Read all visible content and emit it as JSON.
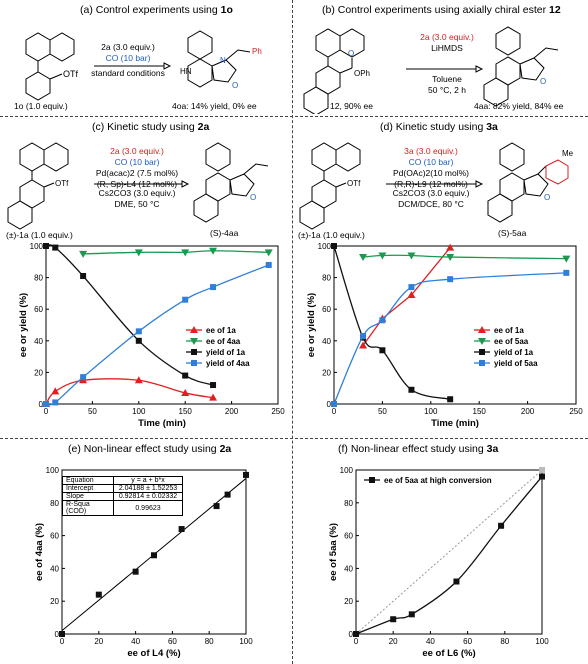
{
  "panel_a": {
    "title_prefix": "(a) Control experiments using ",
    "title_bold": "1o",
    "substituent": "OTf",
    "reagent": "2a (3.0  equiv.)",
    "co": "CO (10 bar)",
    "conditions": "standard conditions",
    "sm_label": "1o (1.0 equiv.)",
    "product_label": "4oa: 14% yield, 0% ee",
    "ring_labels": {
      "n": "N",
      "nh": "HN",
      "o": "O",
      "ph": "Ph"
    }
  },
  "panel_b": {
    "title_prefix": "(b) Control experiments using axially chiral ester ",
    "title_bold": "12",
    "ester": "OPh",
    "carbonyl": "O",
    "reagent": "2a (3.0  equiv.)",
    "base": "LiHMDS",
    "solvent": "Toluene",
    "temp": "50 °C, 2 h",
    "sm_label": "12, 90% ee",
    "product_label": "4aa: 82% yield, 84% ee"
  },
  "panel_c": {
    "title_prefix": "(c) Kinetic study using ",
    "title_bold": "2a",
    "reagent": "2a (3.0  equiv.)",
    "co": "CO (10 bar)",
    "catalyst": "Pd(acac)2 (7.5 mol%)",
    "ligand": "(R, Sp)-L4 (12 mol%)",
    "base": "Cs2CO3 (3.0 equiv.)",
    "solvent": "DME, 50 °C",
    "sm_label": "(±)-1a (1.0  equiv.)",
    "product_label": "(S)-4aa",
    "substituent": "OTf"
  },
  "panel_d": {
    "title_prefix": "(d) Kinetic study using ",
    "title_bold": "3a",
    "reagent": "3a (3.0  equiv.)",
    "co": "CO (10 bar)",
    "catalyst": "Pd(OAc)2(10 mol%)",
    "ligand": "(R,R)-L9 (12 mol%)",
    "base": "Cs2CO3 (3.0 equiv.)",
    "solvent": "DCM/DCE, 80 °C",
    "sm_label": "(±)-1a (1.0  equiv.)",
    "product_label": "(S)-5aa",
    "substituent": "OTf",
    "me": "Me"
  },
  "panel_e": {
    "title_prefix": "(e) Non-linear effect study using ",
    "title_bold": "2a",
    "fit_table": [
      [
        "Equation",
        "y = a + b*x"
      ],
      [
        "Intercept",
        "2.04188 ± 1.52253"
      ],
      [
        "Slope",
        "0.92814 ± 0.02332"
      ],
      [
        "R-Squa (COD)",
        "0.99623"
      ]
    ]
  },
  "panel_f": {
    "title_prefix": "(f) Non-linear effect study using ",
    "title_bold": "3a"
  },
  "chart_data": [
    {
      "id": "c",
      "type": "line",
      "xlabel": "Time (min)",
      "ylabel": "ee or yield (%)",
      "xlim": [
        0,
        250
      ],
      "ylim": [
        0,
        100
      ],
      "xticks": [
        0,
        50,
        100,
        150,
        200,
        250
      ],
      "yticks": [
        0,
        20,
        40,
        60,
        80,
        100
      ],
      "legend_position": "center-right",
      "series": [
        {
          "name": "ee of 1a",
          "color": "#e02020",
          "marker": "triangle",
          "x": [
            0,
            10,
            40,
            100,
            150,
            180
          ],
          "y": [
            0,
            8,
            15,
            15,
            7,
            4
          ]
        },
        {
          "name": "ee of 4aa",
          "color": "#1a9a50",
          "marker": "triangle-down",
          "x": [
            40,
            100,
            150,
            180,
            240
          ],
          "y": [
            95,
            96,
            96,
            97,
            96
          ]
        },
        {
          "name": "yield of 1a",
          "color": "#111111",
          "marker": "square",
          "x": [
            0,
            10,
            40,
            100,
            150,
            180
          ],
          "y": [
            100,
            99,
            81,
            40,
            18,
            12
          ]
        },
        {
          "name": "yield of 4aa",
          "color": "#2f7fd8",
          "marker": "square",
          "x": [
            0,
            10,
            40,
            100,
            150,
            180,
            240
          ],
          "y": [
            0,
            1,
            17,
            46,
            66,
            74,
            88
          ]
        }
      ]
    },
    {
      "id": "d",
      "type": "line",
      "xlabel": "Time (min)",
      "ylabel": "ee or yield (%)",
      "xlim": [
        0,
        250
      ],
      "ylim": [
        0,
        100
      ],
      "xticks": [
        0,
        50,
        100,
        150,
        200,
        250
      ],
      "yticks": [
        0,
        20,
        40,
        60,
        80,
        100
      ],
      "legend_position": "center-right",
      "series": [
        {
          "name": "ee of 1a",
          "color": "#e02020",
          "marker": "triangle",
          "x": [
            30,
            50,
            80,
            120
          ],
          "y": [
            37,
            54,
            69,
            99
          ]
        },
        {
          "name": "ee of 5aa",
          "color": "#1a9a50",
          "marker": "triangle-down",
          "x": [
            30,
            50,
            80,
            120,
            240
          ],
          "y": [
            93,
            94,
            94,
            93,
            92
          ]
        },
        {
          "name": "yield of 1a",
          "color": "#111111",
          "marker": "square",
          "x": [
            0,
            30,
            50,
            80,
            120
          ],
          "y": [
            100,
            42,
            34,
            9,
            3
          ]
        },
        {
          "name": "yield of 5aa",
          "color": "#2f7fd8",
          "marker": "square",
          "x": [
            0,
            30,
            50,
            80,
            120,
            240
          ],
          "y": [
            0,
            43,
            53,
            74,
            79,
            83
          ]
        }
      ]
    },
    {
      "id": "e",
      "type": "scatter",
      "xlabel": "ee of L4 (%)",
      "ylabel": "ee of 4aa (%)",
      "xlim": [
        0,
        100
      ],
      "ylim": [
        0,
        100
      ],
      "xticks": [
        0,
        20,
        40,
        60,
        80,
        100
      ],
      "yticks": [
        0,
        20,
        40,
        60,
        80,
        100
      ],
      "series": [
        {
          "name": "",
          "color": "#111111",
          "marker": "square",
          "x": [
            0,
            20,
            40,
            50,
            65,
            84,
            90,
            100
          ],
          "y": [
            0,
            24,
            38,
            48,
            64,
            78,
            85,
            97
          ]
        }
      ],
      "fit": {
        "intercept": 2.04188,
        "slope": 0.92814
      }
    },
    {
      "id": "f",
      "type": "line",
      "xlabel": "ee of L6 (%)",
      "ylabel": "ee of 5aa (%)",
      "xlim": [
        0,
        100
      ],
      "ylim": [
        0,
        100
      ],
      "xticks": [
        0,
        20,
        40,
        60,
        80,
        100
      ],
      "yticks": [
        0,
        20,
        40,
        60,
        80,
        100
      ],
      "legend_position": "top-left",
      "series": [
        {
          "name": "ee of  5aa at high conversion",
          "color": "#111111",
          "marker": "square",
          "x": [
            0,
            20,
            30,
            54,
            78,
            100
          ],
          "y": [
            0,
            9,
            12,
            32,
            66,
            96
          ]
        }
      ],
      "reference_line": [
        [
          0,
          0
        ],
        [
          100,
          100
        ]
      ]
    }
  ]
}
